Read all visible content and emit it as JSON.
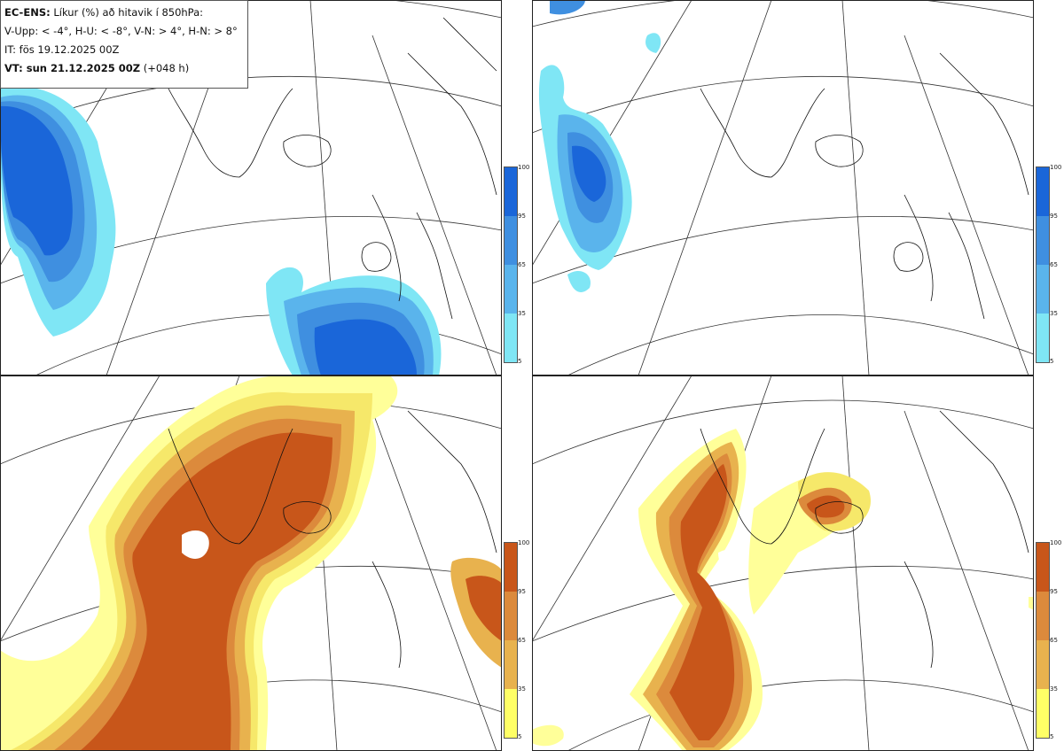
{
  "header": {
    "product": "EC-ENS:",
    "title": "Líkur (%) að hitavik í 850hPa:",
    "thresholds": "V-Upp: < -4°, H-U: < -8°, V-N: > 4°, H-N: > 8°",
    "init_time": "IT: fös 19.12.2025 00Z",
    "valid_label": "VT: sun 21.12.2025 00Z",
    "lead": "(+048 h)"
  },
  "colorbar": {
    "ticks": [
      "100",
      "95",
      "65",
      "35",
      "5"
    ],
    "cold_colors": [
      "#1a66d9",
      "#3f8fe0",
      "#5ab4ec",
      "#7fe6f5",
      "#c8fbff"
    ],
    "warm_colors": [
      "#c8561a",
      "#dc8a3c",
      "#e8b24e",
      "#f6e86a",
      "#ffff99"
    ]
  },
  "panels": [
    {
      "id": "top-left",
      "variable": "V-Upp",
      "palette": "cold"
    },
    {
      "id": "top-right",
      "variable": "H-U",
      "palette": "cold"
    },
    {
      "id": "bottom-left",
      "variable": "V-N",
      "palette": "warm"
    },
    {
      "id": "bottom-right",
      "variable": "H-N",
      "palette": "warm"
    }
  ]
}
